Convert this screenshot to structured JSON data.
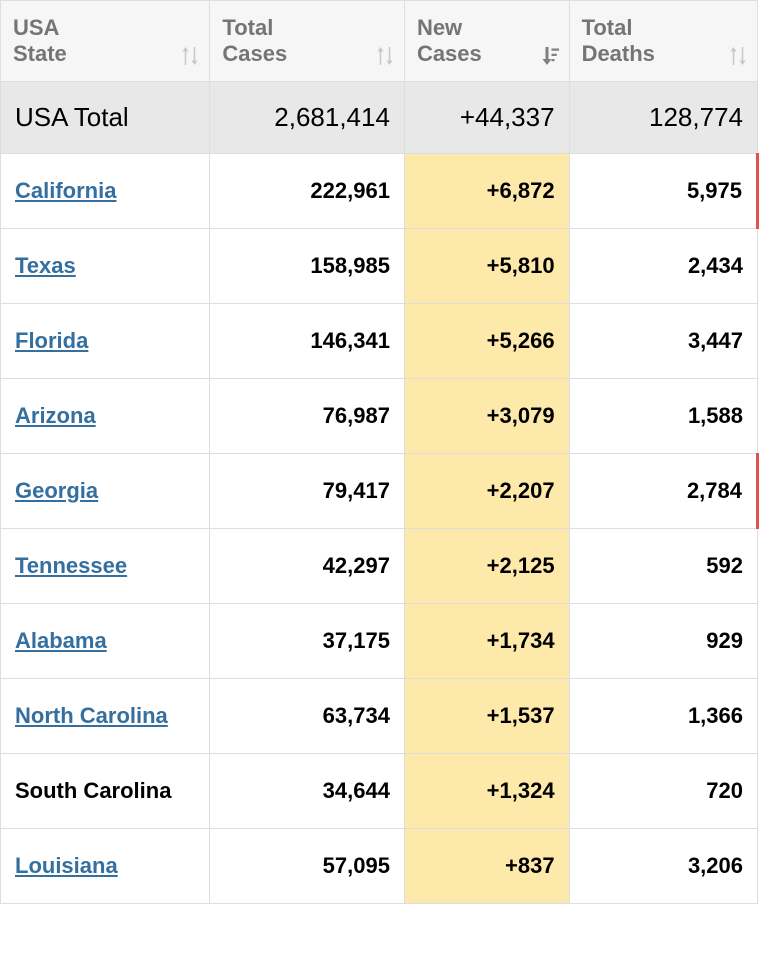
{
  "columns": {
    "state": [
      "USA",
      "State"
    ],
    "total_cases": [
      "Total",
      "Cases"
    ],
    "new_cases": [
      "New",
      "Cases"
    ],
    "total_deaths": [
      "Total",
      "Deaths"
    ]
  },
  "sorted_column": "new_cases",
  "total_row": {
    "label": "USA Total",
    "total_cases": "2,681,414",
    "new_cases": "+44,337",
    "total_deaths": "128,774"
  },
  "highlight_color": "#fde9a9",
  "link_color": "#356f9f",
  "rows": [
    {
      "state": "California",
      "link": true,
      "total_cases": "222,961",
      "new_cases": "+6,872",
      "total_deaths": "5,975",
      "red_edge": true
    },
    {
      "state": "Texas",
      "link": true,
      "total_cases": "158,985",
      "new_cases": "+5,810",
      "total_deaths": "2,434",
      "red_edge": false
    },
    {
      "state": "Florida",
      "link": true,
      "total_cases": "146,341",
      "new_cases": "+5,266",
      "total_deaths": "3,447",
      "red_edge": false
    },
    {
      "state": "Arizona",
      "link": true,
      "total_cases": "76,987",
      "new_cases": "+3,079",
      "total_deaths": "1,588",
      "red_edge": false
    },
    {
      "state": "Georgia",
      "link": true,
      "total_cases": "79,417",
      "new_cases": "+2,207",
      "total_deaths": "2,784",
      "red_edge": true
    },
    {
      "state": "Tennessee",
      "link": true,
      "total_cases": "42,297",
      "new_cases": "+2,125",
      "total_deaths": "592",
      "red_edge": false
    },
    {
      "state": "Alabama",
      "link": true,
      "total_cases": "37,175",
      "new_cases": "+1,734",
      "total_deaths": "929",
      "red_edge": false
    },
    {
      "state": "North Carolina",
      "link": true,
      "total_cases": "63,734",
      "new_cases": "+1,537",
      "total_deaths": "1,366",
      "red_edge": false
    },
    {
      "state": "South Carolina",
      "link": false,
      "total_cases": "34,644",
      "new_cases": "+1,324",
      "total_deaths": "720",
      "red_edge": false
    },
    {
      "state": "Louisiana",
      "link": true,
      "total_cases": "57,095",
      "new_cases": "+837",
      "total_deaths": "3,206",
      "red_edge": false
    }
  ]
}
